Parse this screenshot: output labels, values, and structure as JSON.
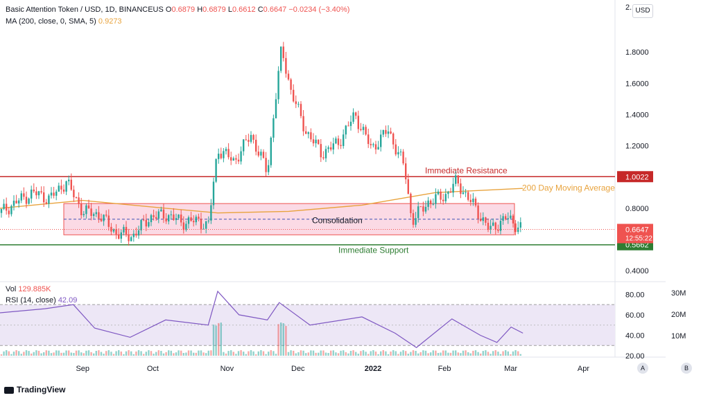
{
  "header": {
    "symbol": "Basic Attention Token / USD, 1D, BINANCEUS",
    "o_label": "O",
    "o": "0.6879",
    "h_label": "H",
    "h": "0.6879",
    "l_label": "L",
    "l": "0.6612",
    "c_label": "C",
    "c": "0.6647",
    "change": "−0.0234 (−3.40%)",
    "ma_label": "MA (200, close, 0, SMA, 5)",
    "ma_value": "0.9273"
  },
  "toolbar": {
    "currency_button": "USD",
    "a_button": "A",
    "b_button": "B"
  },
  "footer": {
    "brand": "TradingView"
  },
  "colors": {
    "up": "#26a69a",
    "down": "#ef5350",
    "ma": "#e8a33d",
    "resistance": "#c62828",
    "support": "#2e7d32",
    "zone_fill": "#f8bbd0",
    "rsi": "#7e57c2",
    "rsi_band": "#ede7f6"
  },
  "chart_data": [
    {
      "type": "candlestick",
      "title": "Basic Attention Token / USD, 1D, BINANCEUS",
      "y_ticks": [
        "0.4000",
        "0.8000",
        "1.0000",
        "1.2000",
        "1.4000",
        "1.6000",
        "1.8000"
      ],
      "y_top_label": "2.",
      "ylim": [
        0.37,
        2.0
      ],
      "x_ticks": [
        "Sep",
        "Oct",
        "Nov",
        "Dec",
        "2022",
        "Feb",
        "Mar",
        "Apr"
      ],
      "price_points": [
        [
          "2021-08-01",
          0.77
        ],
        [
          "2021-08-08",
          0.84
        ],
        [
          "2021-08-15",
          0.9
        ],
        [
          "2021-08-22",
          0.86
        ],
        [
          "2021-08-29",
          0.97
        ],
        [
          "2021-09-05",
          0.78
        ],
        [
          "2021-09-12",
          0.76
        ],
        [
          "2021-09-19",
          0.64
        ],
        [
          "2021-09-26",
          0.62
        ],
        [
          "2021-10-03",
          0.74
        ],
        [
          "2021-10-10",
          0.76
        ],
        [
          "2021-10-17",
          0.71
        ],
        [
          "2021-10-24",
          0.72
        ],
        [
          "2021-10-28",
          0.68
        ],
        [
          "2021-11-01",
          1.18
        ],
        [
          "2021-11-08",
          1.1
        ],
        [
          "2021-11-15",
          1.27
        ],
        [
          "2021-11-22",
          1.03
        ],
        [
          "2021-11-25",
          1.45
        ],
        [
          "2021-11-28",
          1.82
        ],
        [
          "2021-12-02",
          1.55
        ],
        [
          "2021-12-08",
          1.3
        ],
        [
          "2021-12-15",
          1.15
        ],
        [
          "2021-12-22",
          1.22
        ],
        [
          "2021-12-29",
          1.4
        ],
        [
          "2022-01-05",
          1.18
        ],
        [
          "2022-01-12",
          1.3
        ],
        [
          "2022-01-19",
          1.06
        ],
        [
          "2022-01-22",
          0.72
        ],
        [
          "2022-01-29",
          0.84
        ],
        [
          "2022-02-05",
          0.88
        ],
        [
          "2022-02-10",
          0.97
        ],
        [
          "2022-02-17",
          0.82
        ],
        [
          "2022-02-24",
          0.66
        ],
        [
          "2022-03-03",
          0.74
        ],
        [
          "2022-03-10",
          0.6647
        ]
      ],
      "last_price": 0.6647,
      "countdown": "12:55:22"
    },
    {
      "type": "line",
      "name": "MA (200, close, 0, SMA, 5)",
      "points": [
        [
          "2021-08-01",
          0.8
        ],
        [
          "2021-09-05",
          0.85
        ],
        [
          "2021-10-10",
          0.8
        ],
        [
          "2021-11-01",
          0.77
        ],
        [
          "2021-12-01",
          0.78
        ],
        [
          "2022-01-01",
          0.82
        ],
        [
          "2022-02-01",
          0.9
        ],
        [
          "2022-03-10",
          0.9273
        ]
      ]
    },
    {
      "type": "annotations",
      "immediate_resistance": {
        "label": "Immediate Resistance",
        "value": 1.0022,
        "tag": "1.0022"
      },
      "immediate_support": {
        "label": "Immediate Support",
        "value": 0.5662,
        "tag": "0.5662"
      },
      "moving_average_label": "200 Day Moving Average",
      "consolidation": {
        "label": "Consolidation",
        "low": 0.63,
        "high": 0.83
      }
    },
    {
      "type": "line",
      "name": "RSI (14, close)",
      "value": "42.09",
      "y_ticks": [
        "20.00",
        "40.00",
        "60.00",
        "80.00"
      ],
      "ylim": [
        20,
        85
      ],
      "band": [
        30,
        70
      ],
      "points": [
        [
          "2021-08-01",
          62
        ],
        [
          "2021-08-20",
          66
        ],
        [
          "2021-09-01",
          70
        ],
        [
          "2021-09-10",
          47
        ],
        [
          "2021-09-25",
          38
        ],
        [
          "2021-10-10",
          55
        ],
        [
          "2021-10-28",
          50
        ],
        [
          "2021-11-01",
          83
        ],
        [
          "2021-11-10",
          60
        ],
        [
          "2021-11-22",
          55
        ],
        [
          "2021-11-27",
          72
        ],
        [
          "2021-12-10",
          50
        ],
        [
          "2022-01-01",
          58
        ],
        [
          "2022-01-15",
          42
        ],
        [
          "2022-01-24",
          28
        ],
        [
          "2022-02-08",
          56
        ],
        [
          "2022-02-20",
          40
        ],
        [
          "2022-02-27",
          33
        ],
        [
          "2022-03-05",
          48
        ],
        [
          "2022-03-10",
          42.09
        ]
      ]
    },
    {
      "type": "bar",
      "name": "Vol",
      "value": "129.885K",
      "y_ticks": [
        "10M",
        "20M",
        "30M"
      ]
    }
  ]
}
